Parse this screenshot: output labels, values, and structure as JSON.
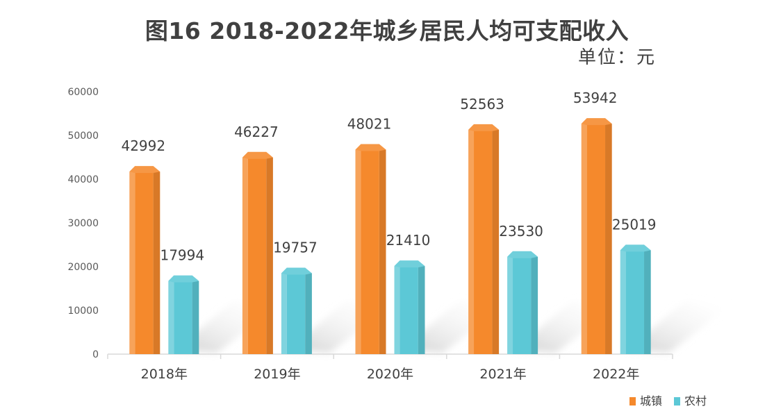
{
  "chart_data": {
    "type": "bar",
    "title": "图16  2018-2022年城乡居民人均可支配收入",
    "unit": "单位：元",
    "categories": [
      "2018年",
      "2019年",
      "2020年",
      "2021年",
      "2022年"
    ],
    "series": [
      {
        "name": "城镇",
        "values": [
          42992,
          46227,
          48021,
          52563,
          53942
        ],
        "color": "#F5892C"
      },
      {
        "name": "农村",
        "values": [
          17994,
          19757,
          21410,
          23530,
          25019
        ],
        "color": "#5CC8D6"
      }
    ],
    "yticks": [
      "0",
      "10000",
      "20000",
      "30000",
      "40000",
      "50000",
      "60000"
    ],
    "ylim": [
      0,
      60000
    ],
    "grid": false,
    "legend_position": "bottom-right",
    "bar_style": "3d-prism"
  }
}
